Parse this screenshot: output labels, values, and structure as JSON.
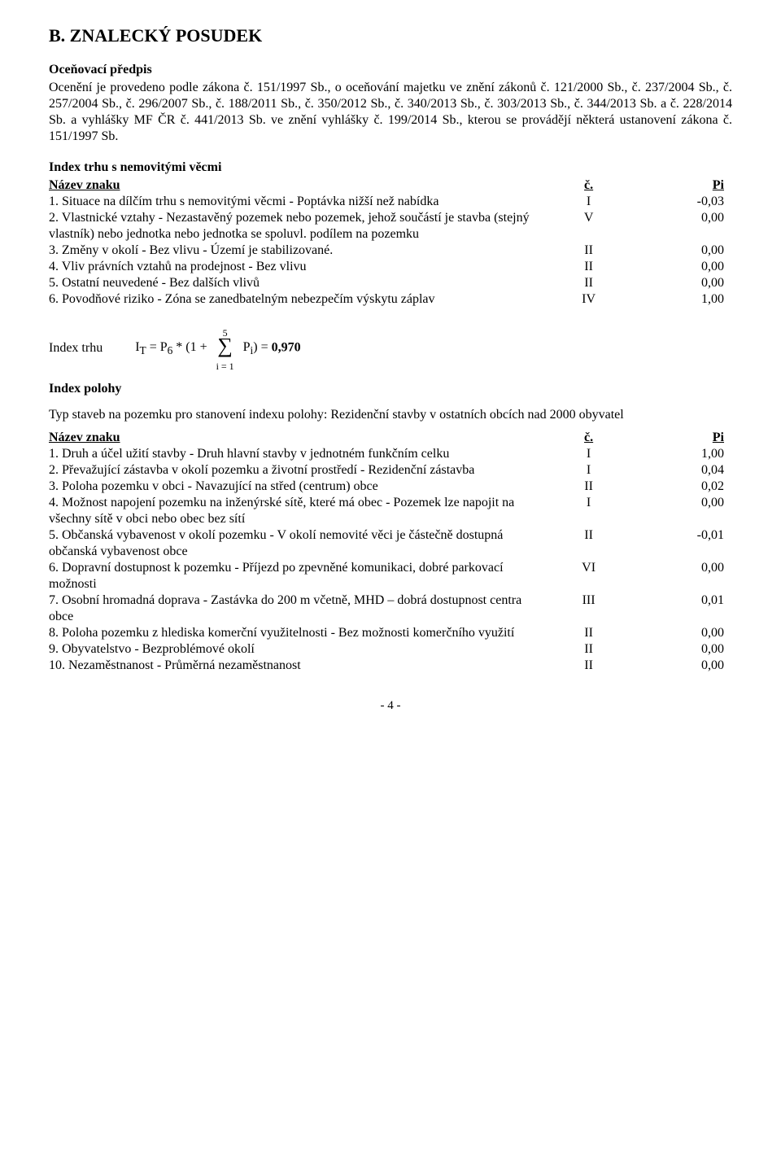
{
  "section_title": "B. ZNALECKÝ POSUDEK",
  "predpis": {
    "heading": "Oceňovací předpis",
    "text": "Ocenění je provedeno podle zákona č. 151/1997 Sb., o oceňování majetku ve znění zákonů č. 121/2000 Sb., č. 237/2004 Sb., č. 257/2004 Sb., č. 296/2007 Sb., č. 188/2011 Sb., č. 350/2012 Sb., č. 340/2013 Sb., č. 303/2013 Sb., č. 344/2013 Sb. a č. 228/2014 Sb. a vyhlášky MF ČR č. 441/2013 Sb. ve znění vyhlášky č. 199/2014 Sb., kterou se provádějí některá ustanovení zákona č. 151/1997 Sb."
  },
  "trhu": {
    "heading": "Index trhu s nemovitými věcmi",
    "header": {
      "name": "Název znaku",
      "c": "č.",
      "p": "Pi"
    },
    "rows": [
      {
        "text": "1. Situace na dílčím trhu s nemovitými věcmi - Poptávka nižší než nabídka",
        "c": "I",
        "p": "-0,03"
      },
      {
        "text": "2. Vlastnické vztahy - Nezastavěný pozemek nebo pozemek, jehož součástí je stavba (stejný vlastník) nebo jednotka nebo jednotka se spoluvl. podílem na pozemku",
        "c": "V",
        "p": "0,00"
      },
      {
        "text": "3. Změny v okolí - Bez vlivu - Území je stabilizované.",
        "c": "II",
        "p": "0,00"
      },
      {
        "text": "4. Vliv právních vztahů na prodejnost - Bez vlivu",
        "c": "II",
        "p": "0,00"
      },
      {
        "text": "5. Ostatní neuvedené - Bez dalších vlivů",
        "c": "II",
        "p": "0,00"
      },
      {
        "text": "6. Povodňové riziko - Zóna se zanedbatelným nebezpečím výskytu záplav",
        "c": "IV",
        "p": "1,00"
      }
    ]
  },
  "formula": {
    "label": "Index trhu",
    "expr_pre": "IT = P6 * (1 + ",
    "sigma_top": "5",
    "sigma_bot": "i = 1",
    "expr_post": " Pi) = ",
    "result_bold": "0,970"
  },
  "polohy": {
    "heading": "Index polohy",
    "intro": "Typ staveb na pozemku pro stanovení indexu polohy: Rezidenční stavby v ostatních obcích nad 2000 obyvatel",
    "header": {
      "name": "Název znaku",
      "c": "č.",
      "p": "Pi"
    },
    "rows": [
      {
        "text": "1. Druh a účel užití stavby - Druh hlavní stavby v jednotném funkčním celku",
        "c": "I",
        "p": "1,00"
      },
      {
        "text": "2. Převažující zástavba v okolí pozemku a životní prostředí - Rezidenční zástavba",
        "c": "I",
        "p": "0,04"
      },
      {
        "text": "3. Poloha pozemku v obci - Navazující na střed (centrum) obce",
        "c": "II",
        "p": "0,02"
      },
      {
        "text": "4. Možnost napojení pozemku na inženýrské sítě, které má obec - Pozemek lze napojit na všechny sítě v obci nebo obec bez sítí",
        "c": "I",
        "p": "0,00"
      },
      {
        "text": "5. Občanská vybavenost v okolí pozemku - V okolí nemovité věci je částečně dostupná občanská vybavenost obce",
        "c": "II",
        "p": "-0,01"
      },
      {
        "text": "6. Dopravní dostupnost k pozemku - Příjezd po zpevněné komunikaci, dobré parkovací možnosti",
        "c": "VI",
        "p": "0,00"
      },
      {
        "text": "7. Osobní hromadná doprava - Zastávka do 200 m včetně, MHD – dobrá dostupnost centra obce",
        "c": "III",
        "p": "0,01"
      },
      {
        "text": "8. Poloha pozemku z hlediska komerční využitelnosti - Bez možnosti komerčního využití",
        "c": "II",
        "p": "0,00"
      },
      {
        "text": "9. Obyvatelstvo - Bezproblémové okolí",
        "c": "II",
        "p": "0,00"
      },
      {
        "text": "10. Nezaměstnanost - Průměrná nezaměstnanost",
        "c": "II",
        "p": "0,00"
      }
    ]
  },
  "page_number": "- 4 -"
}
